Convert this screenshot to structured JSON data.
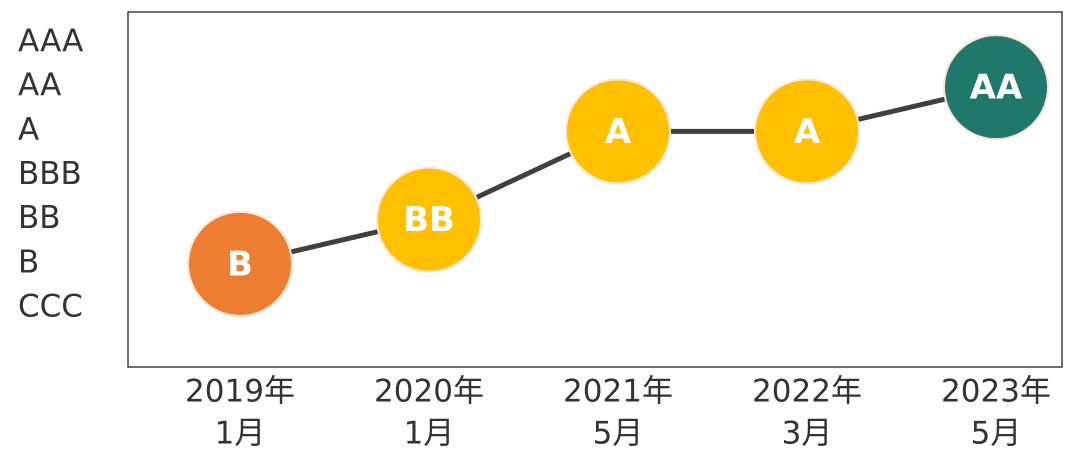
{
  "chart_data": {
    "type": "line",
    "categories": [
      [
        "2019年",
        "1月"
      ],
      [
        "2020年",
        "1月"
      ],
      [
        "2021年",
        "5月"
      ],
      [
        "2022年",
        "3月"
      ],
      [
        "2023年",
        "5月"
      ]
    ],
    "values": [
      2,
      3,
      5,
      5,
      6
    ],
    "value_labels": [
      "B",
      "BB",
      "A",
      "A",
      "AA"
    ],
    "point_colors": [
      "#ED7D31",
      "#FFC000",
      "#FFC000",
      "#FFC000",
      "#20786C"
    ],
    "line_color": "#404040",
    "ylim": [
      1,
      7
    ],
    "yticks": [
      {
        "value": 7,
        "label": "AAA"
      },
      {
        "value": 6,
        "label": "AA"
      },
      {
        "value": 5,
        "label": "A"
      },
      {
        "value": 4,
        "label": "BBB"
      },
      {
        "value": 3,
        "label": "BB"
      },
      {
        "value": 2,
        "label": "B"
      },
      {
        "value": 1,
        "label": "CCC"
      }
    ]
  }
}
